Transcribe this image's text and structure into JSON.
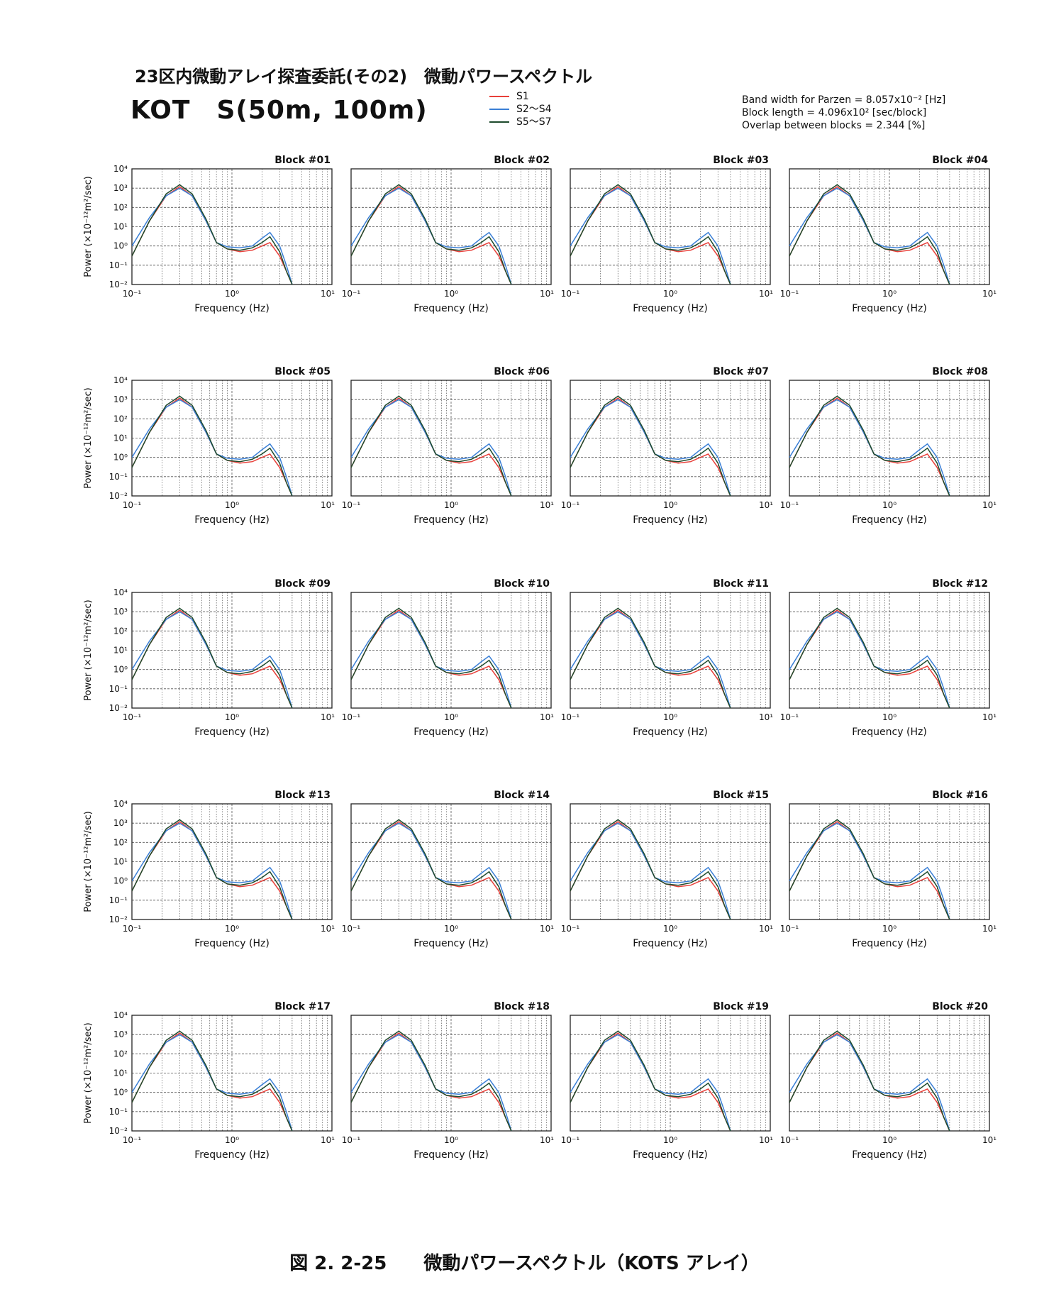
{
  "header": {
    "title": "23区内微動アレイ探査委託(その2)　微動パワースペクトル",
    "site": "KOT　S(50m, 100m)"
  },
  "legend": [
    {
      "label": "S1",
      "color": "#e8403a"
    },
    {
      "label": "S2〜S4",
      "color": "#3a7fd6"
    },
    {
      "label": "S5〜S7",
      "color": "#1d4a2c"
    }
  ],
  "params": [
    "Band width for Parzen = 8.057x10⁻² [Hz]",
    "Block length = 4.096x10² [sec/block]",
    "Overlap between blocks = 2.344 [%]"
  ],
  "caption": "図 2. 2-25　　微動パワースペクトル（KOTS アレイ）",
  "chart_data": {
    "type": "line",
    "x_scale": "log",
    "y_scale": "log",
    "xlim": [
      0.1,
      10
    ],
    "ylim": [
      0.01,
      10000
    ],
    "xlabel": "Frequency (Hz)",
    "ylabel": "Power (×10⁻¹²m²/sec)",
    "x_ticks": [
      "10⁻¹",
      "10⁰",
      "10¹"
    ],
    "y_ticks": [
      "10⁻²",
      "10⁻¹",
      "10⁰",
      "10¹",
      "10²",
      "10³",
      "10⁴"
    ],
    "grid": true,
    "series": [
      {
        "name": "S1",
        "color": "#e8403a",
        "x": [
          0.1,
          0.15,
          0.22,
          0.3,
          0.4,
          0.55,
          0.7,
          0.9,
          1.2,
          1.6,
          2.0,
          2.4,
          3.0,
          3.5,
          4.0
        ],
        "y": [
          0.3,
          20,
          400,
          1200,
          400,
          20,
          1.5,
          0.7,
          0.5,
          0.6,
          1.0,
          1.5,
          0.3,
          0.05,
          0.01
        ]
      },
      {
        "name": "S2〜S4",
        "color": "#3a7fd6",
        "x": [
          0.1,
          0.15,
          0.22,
          0.3,
          0.4,
          0.55,
          0.7,
          0.9,
          1.2,
          1.6,
          2.0,
          2.4,
          3.0,
          3.5,
          4.0
        ],
        "y": [
          1.0,
          30,
          400,
          1000,
          400,
          20,
          1.5,
          0.9,
          0.8,
          1.0,
          2.5,
          5.0,
          1.0,
          0.1,
          0.01
        ]
      },
      {
        "name": "S5〜S7",
        "color": "#1d4a2c",
        "x": [
          0.1,
          0.15,
          0.22,
          0.3,
          0.4,
          0.55,
          0.7,
          0.9,
          1.2,
          1.6,
          2.0,
          2.4,
          3.0,
          3.5,
          4.0
        ],
        "y": [
          0.3,
          20,
          500,
          1500,
          500,
          25,
          1.5,
          0.7,
          0.6,
          0.8,
          1.5,
          3.0,
          0.5,
          0.05,
          0.01
        ]
      }
    ],
    "panels": [
      "Block #01",
      "Block #02",
      "Block #03",
      "Block #04",
      "Block #05",
      "Block #06",
      "Block #07",
      "Block #08",
      "Block #09",
      "Block #10",
      "Block #11",
      "Block #12",
      "Block #13",
      "Block #14",
      "Block #15",
      "Block #16",
      "Block #17",
      "Block #18",
      "Block #19",
      "Block #20"
    ]
  }
}
